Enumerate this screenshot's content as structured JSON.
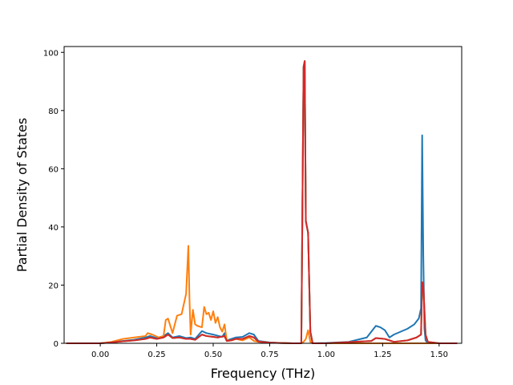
{
  "chart_data": {
    "type": "line",
    "title": "",
    "xlabel": "Frequency (THz)",
    "ylabel": "Partial Density of States",
    "xlim": [
      -0.16,
      1.6
    ],
    "ylim": [
      0,
      102
    ],
    "xticks": [
      0.0,
      0.25,
      0.5,
      0.75,
      1.0,
      1.25,
      1.5
    ],
    "xtick_labels": [
      "0.00",
      "0.25",
      "0.50",
      "0.75",
      "1.00",
      "1.25",
      "1.50"
    ],
    "yticks": [
      0,
      20,
      40,
      60,
      80,
      100
    ],
    "ytick_labels": [
      "0",
      "20",
      "40",
      "60",
      "80",
      "100"
    ],
    "grid": false,
    "legend": "none",
    "series": [
      {
        "color": "#1f77b4",
        "x": [
          -0.15,
          0.0,
          0.05,
          0.1,
          0.15,
          0.2,
          0.22,
          0.25,
          0.28,
          0.3,
          0.32,
          0.35,
          0.38,
          0.4,
          0.42,
          0.45,
          0.47,
          0.5,
          0.52,
          0.54,
          0.55,
          0.56,
          0.58,
          0.6,
          0.63,
          0.66,
          0.68,
          0.7,
          0.75,
          0.8,
          0.85,
          0.89,
          0.9,
          0.905,
          0.91,
          0.92,
          0.93,
          0.94,
          1.0,
          1.1,
          1.18,
          1.2,
          1.22,
          1.24,
          1.26,
          1.28,
          1.3,
          1.33,
          1.36,
          1.39,
          1.41,
          1.42,
          1.425,
          1.43,
          1.435,
          1.44,
          1.45,
          1.5,
          1.58
        ],
        "y": [
          0,
          0,
          0.3,
          0.8,
          1.2,
          2.0,
          2.5,
          1.8,
          2.5,
          3.5,
          2.0,
          2.5,
          1.8,
          2.0,
          1.5,
          4.2,
          3.5,
          3.0,
          2.6,
          2.2,
          3.5,
          1.0,
          1.5,
          2.0,
          2.2,
          3.5,
          3.0,
          0.8,
          0.3,
          0.1,
          0,
          0,
          95.0,
          97.0,
          42.0,
          38.0,
          4.0,
          0,
          0.1,
          0.5,
          2.0,
          4.0,
          6.0,
          5.5,
          4.5,
          2.0,
          3.0,
          4.0,
          5.0,
          6.5,
          8.5,
          12.0,
          71.5,
          30.0,
          5.0,
          1.0,
          0,
          0,
          0
        ]
      },
      {
        "color": "#ff7f0e",
        "x": [
          -0.15,
          0.0,
          0.05,
          0.1,
          0.15,
          0.2,
          0.21,
          0.23,
          0.26,
          0.28,
          0.29,
          0.3,
          0.32,
          0.34,
          0.36,
          0.38,
          0.39,
          0.395,
          0.4,
          0.41,
          0.42,
          0.43,
          0.45,
          0.46,
          0.47,
          0.48,
          0.49,
          0.5,
          0.51,
          0.52,
          0.53,
          0.54,
          0.55,
          0.56,
          0.58,
          0.6,
          0.63,
          0.66,
          0.68,
          0.7,
          0.75,
          0.8,
          0.85,
          0.89,
          0.9,
          0.91,
          0.92,
          0.93,
          0.94,
          1.0,
          1.2,
          1.4,
          1.45,
          1.5,
          1.58
        ],
        "y": [
          0,
          0,
          0.5,
          1.5,
          2.0,
          2.5,
          3.5,
          3.0,
          2.0,
          2.5,
          8.0,
          8.5,
          3.5,
          9.5,
          10.0,
          17.0,
          33.5,
          15.0,
          3.0,
          11.5,
          6.5,
          6.0,
          5.5,
          12.5,
          10.0,
          10.5,
          8.0,
          11.0,
          7.0,
          9.0,
          5.5,
          4.0,
          6.5,
          1.0,
          1.0,
          1.5,
          1.0,
          2.0,
          0.8,
          0.5,
          0.2,
          0.1,
          0,
          0,
          0.5,
          1.5,
          4.5,
          0.5,
          0,
          0,
          0,
          0,
          0,
          0,
          0
        ]
      },
      {
        "color": "#2ca02c",
        "x": [
          -0.15,
          0.0,
          0.05,
          0.1,
          0.15,
          0.2,
          0.22,
          0.25,
          0.28,
          0.3,
          0.32,
          0.35,
          0.38,
          0.4,
          0.42,
          0.45,
          0.47,
          0.5,
          0.52,
          0.55,
          0.56,
          0.58,
          0.6,
          0.63,
          0.66,
          0.68,
          0.7,
          0.75,
          0.8,
          0.85,
          0.89,
          0.9,
          0.905,
          0.91,
          0.92,
          0.93,
          0.94,
          1.0,
          1.2,
          1.22,
          1.26,
          1.28,
          1.3,
          1.36,
          1.4,
          1.42,
          1.425,
          1.43,
          1.44,
          1.45,
          1.5,
          1.58
        ],
        "y": [
          0,
          0,
          0.3,
          0.7,
          1.0,
          1.5,
          2.0,
          1.5,
          2.0,
          3.0,
          1.8,
          2.0,
          1.5,
          1.5,
          1.2,
          3.0,
          2.5,
          2.2,
          2.0,
          2.5,
          0.8,
          1.0,
          1.5,
          1.5,
          2.5,
          2.0,
          0.6,
          0.2,
          0.1,
          0,
          0,
          95.0,
          97.0,
          42.0,
          38.0,
          4.0,
          0,
          0,
          0.8,
          1.8,
          1.5,
          1.0,
          0.5,
          1.0,
          2.0,
          3.0,
          21.0,
          20.0,
          3.0,
          0.5,
          0,
          0
        ]
      },
      {
        "color": "#d62728",
        "x": [
          -0.15,
          0.0,
          0.05,
          0.1,
          0.15,
          0.2,
          0.22,
          0.25,
          0.28,
          0.3,
          0.32,
          0.35,
          0.38,
          0.4,
          0.42,
          0.45,
          0.47,
          0.5,
          0.52,
          0.55,
          0.56,
          0.58,
          0.6,
          0.63,
          0.66,
          0.68,
          0.7,
          0.75,
          0.8,
          0.85,
          0.89,
          0.9,
          0.905,
          0.91,
          0.92,
          0.93,
          0.94,
          1.0,
          1.2,
          1.22,
          1.26,
          1.28,
          1.3,
          1.36,
          1.4,
          1.42,
          1.425,
          1.43,
          1.44,
          1.45,
          1.5,
          1.58
        ],
        "y": [
          0,
          0,
          0.3,
          0.7,
          1.0,
          1.5,
          2.0,
          1.5,
          2.0,
          3.0,
          1.8,
          2.0,
          1.5,
          1.5,
          1.2,
          3.0,
          2.5,
          2.2,
          2.0,
          2.5,
          0.8,
          1.0,
          1.5,
          1.5,
          2.5,
          2.0,
          0.6,
          0.2,
          0.1,
          0,
          0,
          95.0,
          97.0,
          42.0,
          38.0,
          4.0,
          0,
          0,
          0.8,
          1.8,
          1.5,
          1.0,
          0.5,
          1.0,
          2.0,
          3.0,
          21.0,
          20.0,
          3.0,
          0.5,
          0,
          0
        ]
      }
    ]
  }
}
